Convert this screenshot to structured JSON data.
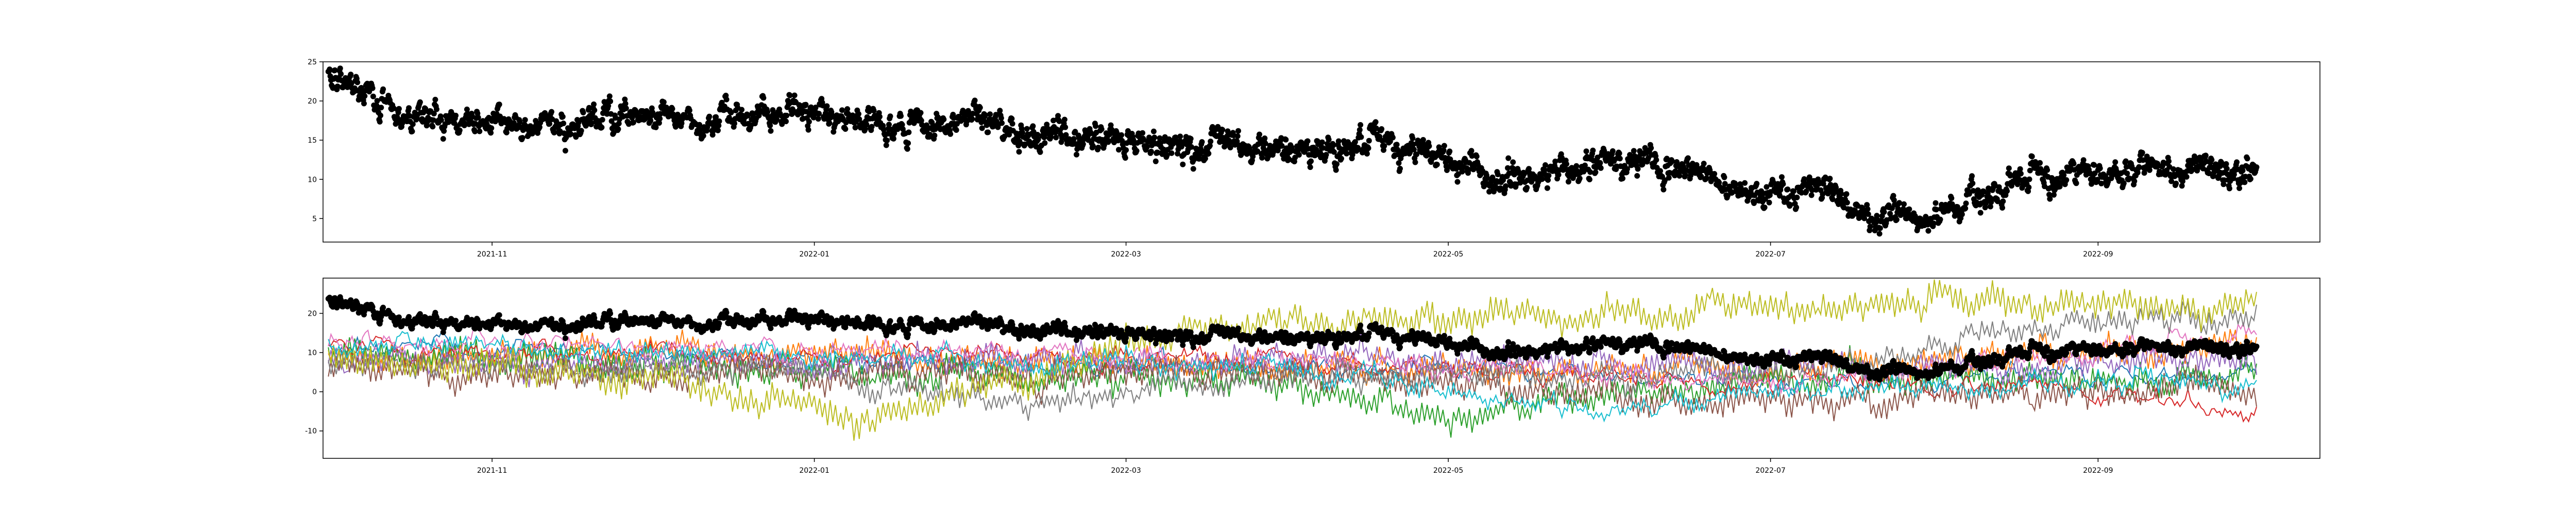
{
  "chart_data": [
    {
      "type": "scatter",
      "x_axis": {
        "type": "date",
        "range": [
          "2021-09-30",
          "2022-10-13"
        ],
        "tick_labels": [
          {
            "date": "2021-11-01",
            "label": "2021-11"
          },
          {
            "date": "2022-01-01",
            "label": "2022-01"
          },
          {
            "date": "2022-03-01",
            "label": "2022-03"
          },
          {
            "date": "2022-05-01",
            "label": "2022-05"
          },
          {
            "date": "2022-07-01",
            "label": "2022-07"
          },
          {
            "date": "2022-09-01",
            "label": "2022-09"
          }
        ]
      },
      "y_axis": {
        "range": [
          2,
          25
        ],
        "ticks": [
          5,
          10,
          15,
          20,
          25
        ]
      },
      "series": [
        {
          "color": "#000000",
          "marker": "circle",
          "data_start": "2021-10-01",
          "data_end": "2022-10-01",
          "trend": [
            [
              "2021-10-01",
              22.5
            ],
            [
              "2021-10-05",
              22.0
            ],
            [
              "2021-10-10",
              20.5
            ],
            [
              "2021-10-15",
              18.5
            ],
            [
              "2021-10-25",
              17.5
            ],
            [
              "2021-11-10",
              17.0
            ],
            [
              "2021-11-25",
              18.0
            ],
            [
              "2021-12-05",
              17.5
            ],
            [
              "2021-12-15",
              18.0
            ],
            [
              "2021-12-25",
              19.0
            ],
            [
              "2022-01-05",
              17.5
            ],
            [
              "2022-01-20",
              16.5
            ],
            [
              "2022-01-31",
              18.0
            ],
            [
              "2022-02-10",
              16.0
            ],
            [
              "2022-02-20",
              15.0
            ],
            [
              "2022-03-01",
              15.5
            ],
            [
              "2022-03-15",
              14.0
            ],
            [
              "2022-03-31",
              13.5
            ],
            [
              "2022-04-15",
              14.5
            ],
            [
              "2022-04-30",
              13.0
            ],
            [
              "2022-05-10",
              10.0
            ],
            [
              "2022-05-20",
              11.0
            ],
            [
              "2022-06-01",
              12.5
            ],
            [
              "2022-06-10",
              12.0
            ],
            [
              "2022-06-20",
              10.0
            ],
            [
              "2022-07-01",
              8.0
            ],
            [
              "2022-07-10",
              9.5
            ],
            [
              "2022-07-20",
              6.0
            ],
            [
              "2022-07-31",
              5.0
            ],
            [
              "2022-08-10",
              8.0
            ],
            [
              "2022-08-20",
              11.5
            ],
            [
              "2022-08-31",
              10.0
            ],
            [
              "2022-09-10",
              11.5
            ],
            [
              "2022-09-20",
              11.0
            ],
            [
              "2022-10-01",
              11.5
            ]
          ]
        }
      ]
    },
    {
      "type": "line",
      "x_axis": {
        "type": "date",
        "range": [
          "2021-09-30",
          "2022-10-13"
        ],
        "tick_labels": [
          {
            "date": "2021-11-01",
            "label": "2021-11"
          },
          {
            "date": "2022-01-01",
            "label": "2022-01"
          },
          {
            "date": "2022-03-01",
            "label": "2022-03"
          },
          {
            "date": "2022-05-01",
            "label": "2022-05"
          },
          {
            "date": "2022-07-01",
            "label": "2022-07"
          },
          {
            "date": "2022-09-01",
            "label": "2022-09"
          }
        ]
      },
      "y_axis": {
        "range": [
          -17,
          29
        ],
        "ticks": [
          -10,
          0,
          10,
          20
        ]
      },
      "overlay_scatter": {
        "color": "#000000",
        "marker": "circle",
        "same_as_top_series": true
      },
      "series": [
        {
          "color": "#1f77b4",
          "trend": [
            [
              "2021-10-01",
              12
            ],
            [
              "2022-01-01",
              8
            ],
            [
              "2022-04-01",
              7
            ],
            [
              "2022-07-01",
              3
            ],
            [
              "2022-10-01",
              5
            ]
          ]
        },
        {
          "color": "#ff7f0e",
          "trend": [
            [
              "2021-10-01",
              9
            ],
            [
              "2022-01-01",
              10
            ],
            [
              "2022-04-01",
              6
            ],
            [
              "2022-07-01",
              5
            ],
            [
              "2022-10-01",
              12
            ]
          ]
        },
        {
          "color": "#2ca02c",
          "trend": [
            [
              "2021-10-01",
              10
            ],
            [
              "2022-01-01",
              5
            ],
            [
              "2022-04-01",
              2
            ],
            [
              "2022-05-01",
              -6
            ],
            [
              "2022-07-01",
              3
            ],
            [
              "2022-10-01",
              4
            ]
          ]
        },
        {
          "color": "#d62728",
          "trend": [
            [
              "2021-10-01",
              11
            ],
            [
              "2022-01-01",
              9
            ],
            [
              "2022-04-01",
              8
            ],
            [
              "2022-07-01",
              2
            ],
            [
              "2022-09-01",
              0
            ],
            [
              "2022-10-01",
              -5
            ]
          ]
        },
        {
          "color": "#9467bd",
          "trend": [
            [
              "2021-10-01",
              8
            ],
            [
              "2022-01-01",
              7
            ],
            [
              "2022-04-01",
              9
            ],
            [
              "2022-07-01",
              6
            ],
            [
              "2022-10-01",
              8
            ]
          ]
        },
        {
          "color": "#8c564b",
          "trend": [
            [
              "2021-10-01",
              6
            ],
            [
              "2022-01-01",
              4
            ],
            [
              "2022-04-01",
              5
            ],
            [
              "2022-07-01",
              -3
            ],
            [
              "2022-10-01",
              2
            ]
          ]
        },
        {
          "color": "#e377c2",
          "trend": [
            [
              "2021-10-01",
              13
            ],
            [
              "2022-01-01",
              10
            ],
            [
              "2022-04-01",
              9
            ],
            [
              "2022-07-01",
              2
            ],
            [
              "2022-10-01",
              14
            ]
          ]
        },
        {
          "color": "#7f7f7f",
          "trend": [
            [
              "2021-10-01",
              7
            ],
            [
              "2022-01-01",
              5
            ],
            [
              "2022-02-10",
              -3
            ],
            [
              "2022-04-01",
              4
            ],
            [
              "2022-07-01",
              5
            ],
            [
              "2022-09-01",
              18
            ],
            [
              "2022-10-01",
              19
            ]
          ]
        },
        {
          "color": "#bcbd22",
          "trend": [
            [
              "2021-10-01",
              8
            ],
            [
              "2021-12-01",
              4
            ],
            [
              "2022-01-10",
              -7
            ],
            [
              "2022-02-10",
              3
            ],
            [
              "2022-03-15",
              17
            ],
            [
              "2022-06-01",
              20
            ],
            [
              "2022-07-25",
              23
            ],
            [
              "2022-10-01",
              21
            ]
          ]
        },
        {
          "color": "#17becf",
          "trend": [
            [
              "2021-10-01",
              12
            ],
            [
              "2022-01-01",
              9
            ],
            [
              "2022-04-01",
              6
            ],
            [
              "2022-05-25",
              -5
            ],
            [
              "2022-07-01",
              0
            ],
            [
              "2022-10-01",
              3
            ]
          ]
        }
      ]
    }
  ]
}
